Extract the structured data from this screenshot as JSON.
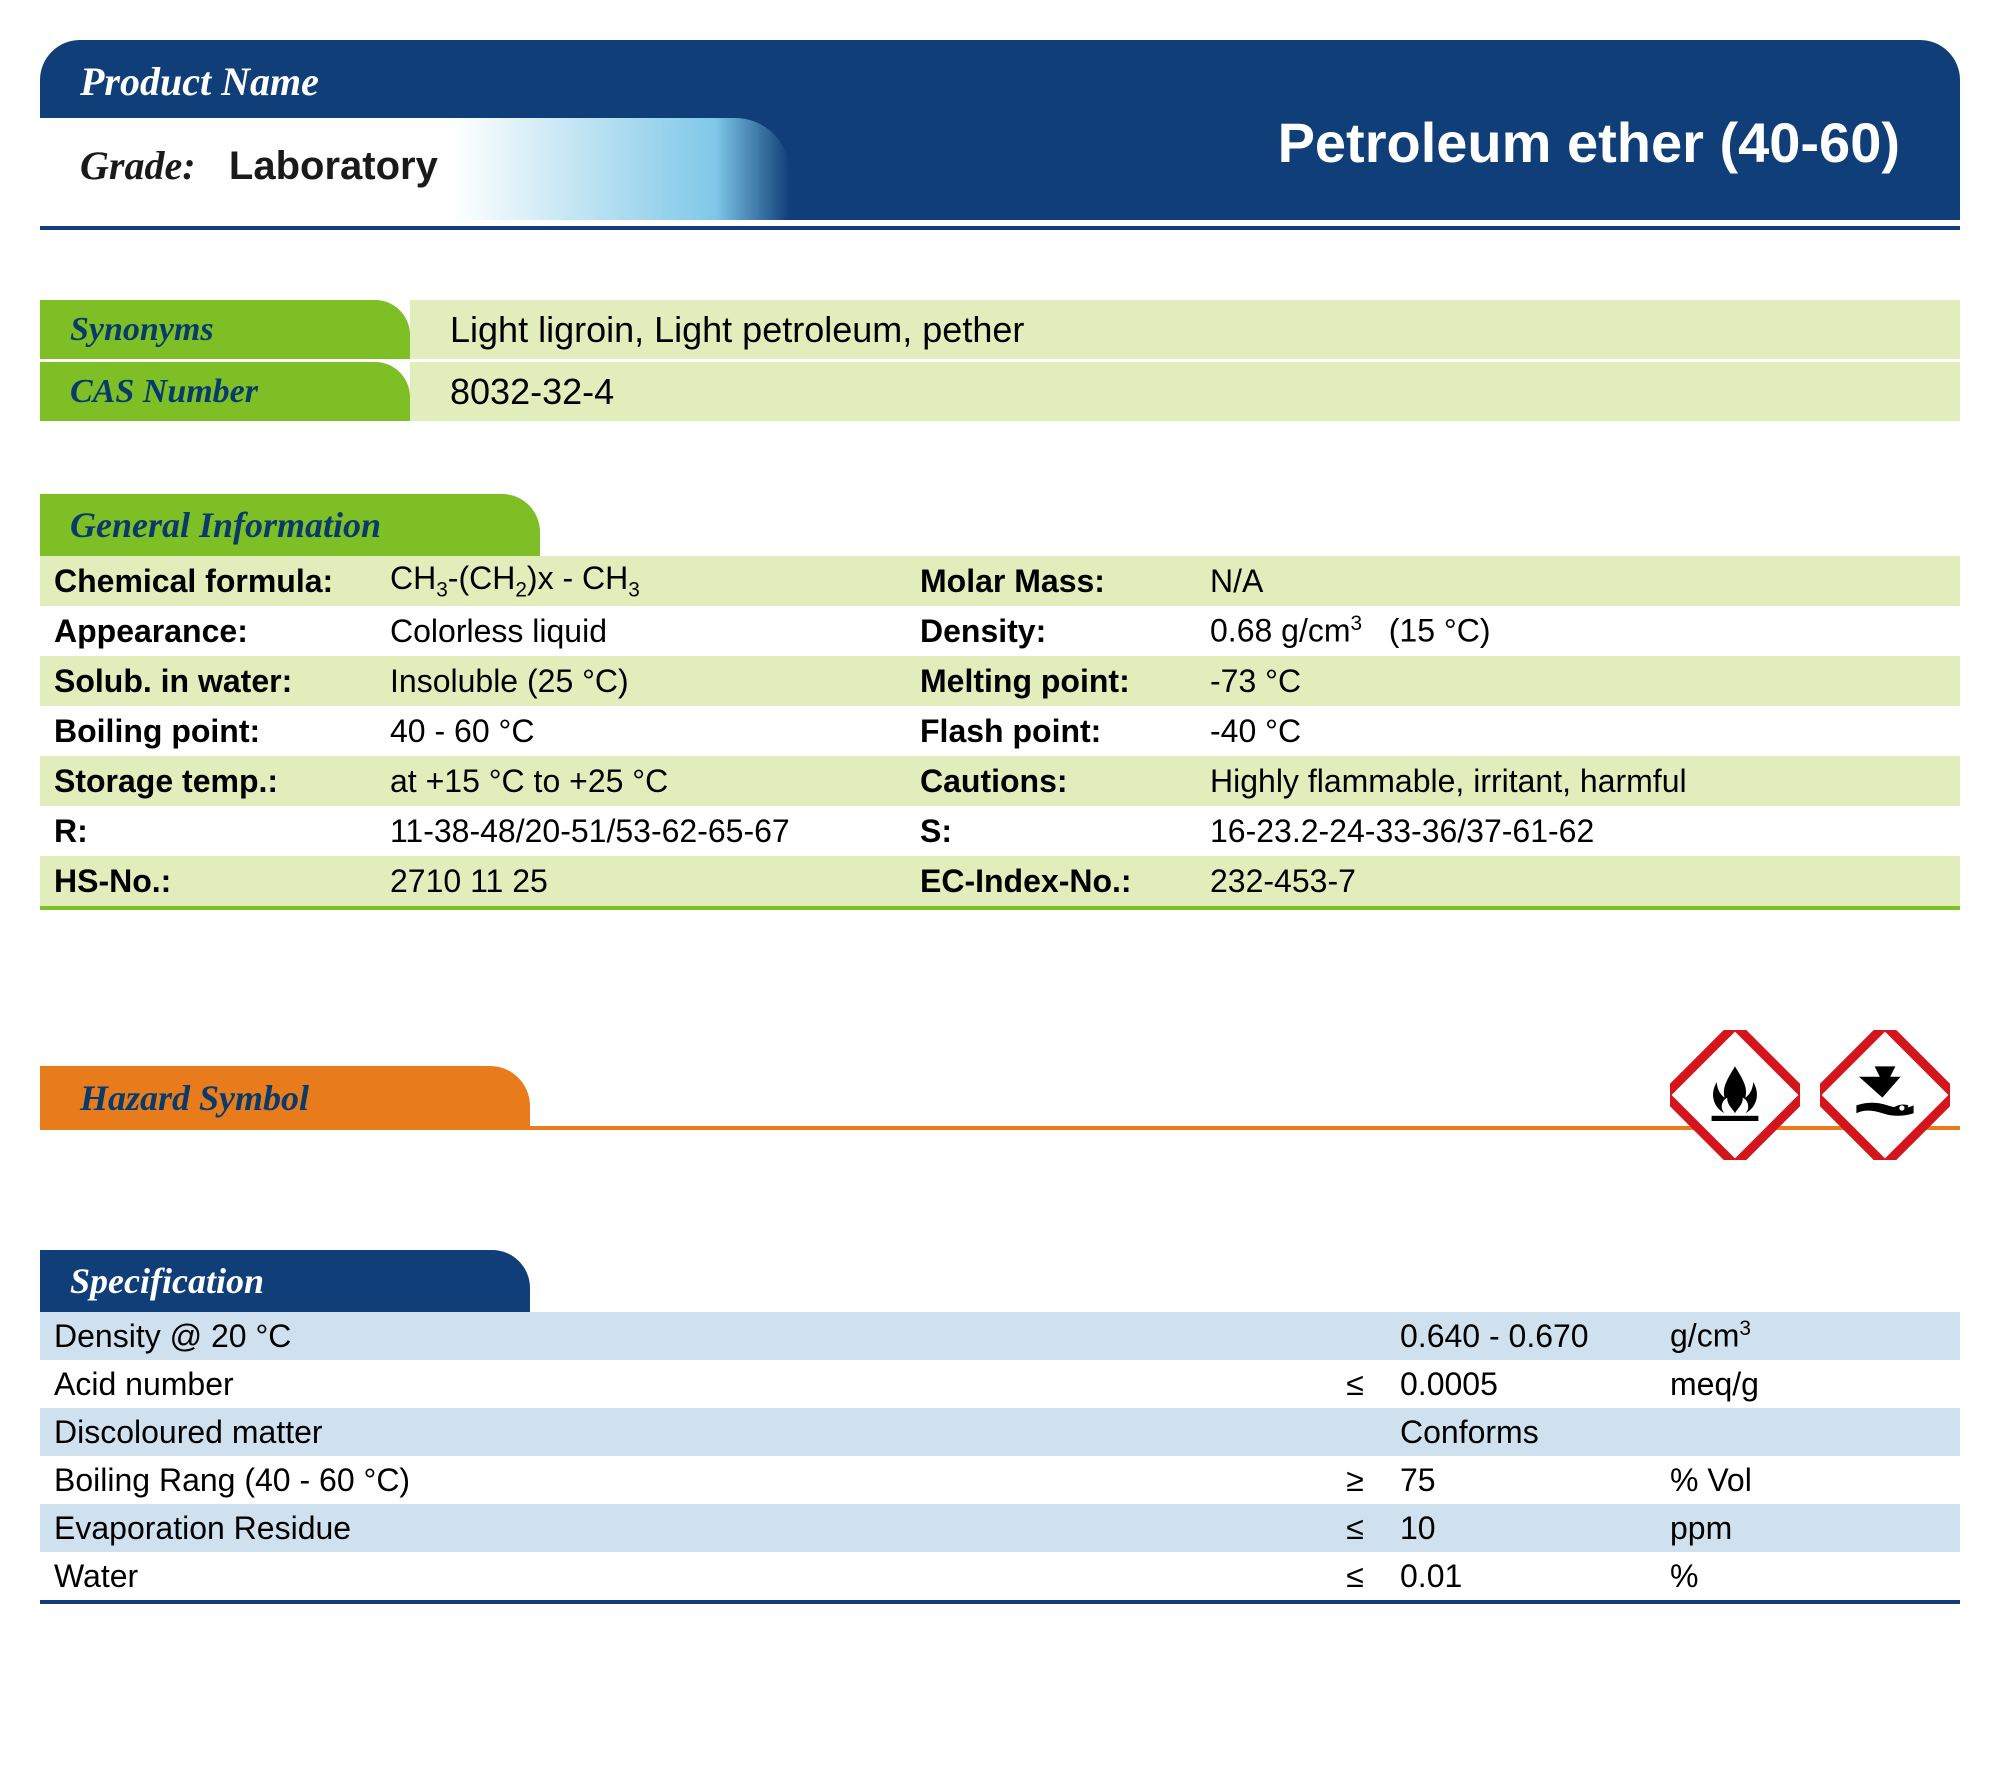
{
  "colors": {
    "navy": "#0f3e78",
    "green": "#7fbf26",
    "green_light": "#e1edbb",
    "orange": "#e87b1b",
    "blue_light": "#cfe1ee",
    "hazard_red": "#d4151b"
  },
  "header": {
    "product_name_label": "Product Name",
    "grade_label": "Grade:",
    "grade_value": "Laboratory",
    "title": "Petroleum ether  (40-60)"
  },
  "identity": {
    "synonyms_label": "Synonyms",
    "synonyms_value": "Light ligroin, Light petroleum, pether",
    "cas_label": "CAS  Number",
    "cas_value": "8032-32-4"
  },
  "general_info": {
    "header": "General Information",
    "rows": [
      {
        "l1": "Chemical formula:",
        "v1_html": "CH<sub>3</sub>-(CH<sub>2</sub>)x - CH<sub>3</sub>",
        "l2": "Molar Mass:",
        "v2_html": "N/A",
        "bg": "odd"
      },
      {
        "l1": "Appearance:",
        "v1_html": "Colorless liquid",
        "l2": "Density:",
        "v2_html": "0.68  g/cm<sup>3</sup>&nbsp;&nbsp;&nbsp;(15 °C)",
        "bg": "even"
      },
      {
        "l1": "Solub. in water:",
        "v1_html": "Insoluble (25 °C)",
        "l2": "Melting point:",
        "v2_html": "-73 °C",
        "bg": "odd"
      },
      {
        "l1": "Boiling point:",
        "v1_html": "40 - 60 °C",
        "l2": "Flash point:",
        "v2_html": "-40 °C",
        "bg": "even"
      },
      {
        "l1": "Storage temp.:",
        "v1_html": "at +15 °C to +25 °C",
        "l2": "Cautions:",
        "v2_html": "Highly flammable, irritant, harmful",
        "bg": "odd"
      },
      {
        "l1": "R:",
        "v1_html": "11-38-48/20-51/53-62-65-67",
        "l2": "S:",
        "v2_html": "16-23.2-24-33-36/37-61-62",
        "bg": "even"
      },
      {
        "l1": "HS-No.:",
        "v1_html": "2710 11 25",
        "l2": "EC-Index-No.:",
        "v2_html": "232-453-7",
        "bg": "odd"
      }
    ]
  },
  "hazard": {
    "label": "Hazard Symbol",
    "icons": [
      "flammable",
      "environment"
    ]
  },
  "specification": {
    "header": "Specification",
    "rows": [
      {
        "name": "Density @ 20 °C",
        "op": "",
        "val": "0.640 - 0.670",
        "unit_html": "g/cm<sup>3</sup>",
        "bg": "odd"
      },
      {
        "name": "Acid number",
        "op": "≤",
        "val": "0.0005",
        "unit_html": "meq/g",
        "bg": "even"
      },
      {
        "name": "Discoloured matter",
        "op": "",
        "val": "Conforms",
        "unit_html": "",
        "bg": "odd"
      },
      {
        "name": "Boiling Rang (40 - 60 °C)",
        "op": "≥",
        "val": "75",
        "unit_html": "% Vol",
        "bg": "even"
      },
      {
        "name": "Evaporation Residue",
        "op": "≤",
        "val": "10",
        "unit_html": "ppm",
        "bg": "odd"
      },
      {
        "name": "Water",
        "op": "≤",
        "val": "0.01",
        "unit_html": "%",
        "bg": "even"
      }
    ]
  }
}
